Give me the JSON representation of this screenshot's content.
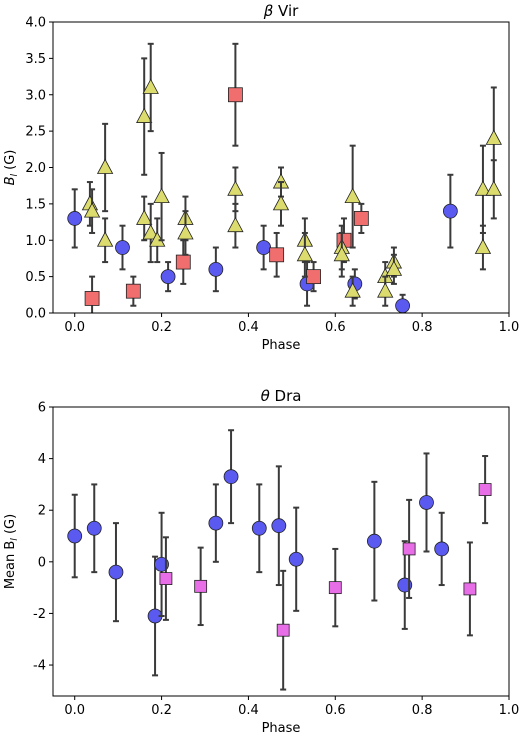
{
  "chart_data": [
    {
      "type": "scatter",
      "title_sym": "β",
      "title_rest": " Vir",
      "xlabel": "Phase",
      "ylabel_main": "B",
      "ylabel_sub": "l",
      "ylabel_unit": " (G)",
      "xlim": [
        -0.05,
        1.0
      ],
      "ylim": [
        0.0,
        4.0
      ],
      "xticks": [
        "0.0",
        "0.2",
        "0.4",
        "0.6",
        "0.8",
        "1.0"
      ],
      "yticks": [
        "0.0",
        "0.5",
        "1.0",
        "1.5",
        "2.0",
        "2.5",
        "3.0",
        "3.5",
        "4.0"
      ],
      "grid": false,
      "series": [
        {
          "marker": "circle",
          "color": "#5a5af0",
          "points": [
            {
              "x": 0.0,
              "y": 1.3,
              "err": 0.4
            },
            {
              "x": 0.11,
              "y": 0.9,
              "err": 0.3
            },
            {
              "x": 0.215,
              "y": 0.5,
              "err": 0.2
            },
            {
              "x": 0.325,
              "y": 0.6,
              "err": 0.3
            },
            {
              "x": 0.435,
              "y": 0.9,
              "err": 0.3
            },
            {
              "x": 0.535,
              "y": 0.4,
              "err": 0.3
            },
            {
              "x": 0.645,
              "y": 0.4,
              "err": 0.2
            },
            {
              "x": 0.755,
              "y": 0.1,
              "err": 0.15
            },
            {
              "x": 0.865,
              "y": 1.4,
              "err": 0.5
            }
          ]
        },
        {
          "marker": "square",
          "color": "#f06e6e",
          "points": [
            {
              "x": 0.04,
              "y": 0.2,
              "err": 0.3
            },
            {
              "x": 0.135,
              "y": 0.3,
              "err": 0.2
            },
            {
              "x": 0.25,
              "y": 0.7,
              "err": 0.3
            },
            {
              "x": 0.37,
              "y": 3.0,
              "err": 0.7
            },
            {
              "x": 0.465,
              "y": 0.8,
              "err": 0.3
            },
            {
              "x": 0.55,
              "y": 0.5,
              "err": 0.2
            },
            {
              "x": 0.62,
              "y": 1.0,
              "err": 0.3
            },
            {
              "x": 0.66,
              "y": 1.3,
              "err": 0.2
            }
          ]
        },
        {
          "marker": "triangle",
          "color": "#dcdc6e",
          "points": [
            {
              "x": 0.035,
              "y": 1.5,
              "err": 0.3
            },
            {
              "x": 0.04,
              "y": 1.4,
              "err": 0.3
            },
            {
              "x": 0.07,
              "y": 2.0,
              "err": 0.6
            },
            {
              "x": 0.07,
              "y": 1.0,
              "err": 0.3
            },
            {
              "x": 0.16,
              "y": 2.7,
              "err": 0.8
            },
            {
              "x": 0.16,
              "y": 1.3,
              "err": 0.3
            },
            {
              "x": 0.175,
              "y": 3.1,
              "err": 0.6
            },
            {
              "x": 0.175,
              "y": 1.1,
              "err": 0.4
            },
            {
              "x": 0.19,
              "y": 1.0,
              "err": 0.3
            },
            {
              "x": 0.2,
              "y": 1.6,
              "err": 0.6
            },
            {
              "x": 0.255,
              "y": 1.3,
              "err": 0.3
            },
            {
              "x": 0.255,
              "y": 1.1,
              "err": 0.3
            },
            {
              "x": 0.37,
              "y": 1.7,
              "err": 0.3
            },
            {
              "x": 0.37,
              "y": 1.2,
              "err": 0.3
            },
            {
              "x": 0.475,
              "y": 1.8,
              "err": 0.2
            },
            {
              "x": 0.475,
              "y": 1.5,
              "err": 0.3
            },
            {
              "x": 0.53,
              "y": 1.0,
              "err": 0.3
            },
            {
              "x": 0.53,
              "y": 0.8,
              "err": 0.3
            },
            {
              "x": 0.615,
              "y": 0.9,
              "err": 0.3
            },
            {
              "x": 0.615,
              "y": 0.8,
              "err": 0.3
            },
            {
              "x": 0.64,
              "y": 1.6,
              "err": 0.7
            },
            {
              "x": 0.64,
              "y": 0.3,
              "err": 0.2
            },
            {
              "x": 0.715,
              "y": 0.5,
              "err": 0.2
            },
            {
              "x": 0.715,
              "y": 0.3,
              "err": 0.2
            },
            {
              "x": 0.735,
              "y": 0.7,
              "err": 0.2
            },
            {
              "x": 0.735,
              "y": 0.6,
              "err": 0.2
            },
            {
              "x": 0.94,
              "y": 1.7,
              "err": 0.6
            },
            {
              "x": 0.94,
              "y": 0.9,
              "err": 0.3
            },
            {
              "x": 0.965,
              "y": 2.4,
              "err": 0.7
            },
            {
              "x": 0.965,
              "y": 1.7,
              "err": 0.4
            }
          ]
        }
      ]
    },
    {
      "type": "scatter",
      "title_sym": "θ",
      "title_rest": " Dra",
      "xlabel": "Phase",
      "ylabel_main": "Mean B",
      "ylabel_sub": "l",
      "ylabel_unit": " (G)",
      "xlim": [
        -0.05,
        1.0
      ],
      "ylim": [
        -5.2,
        6.0
      ],
      "xticks": [
        "0.0",
        "0.2",
        "0.4",
        "0.6",
        "0.8",
        "1.0"
      ],
      "yticks": [
        "-4",
        "-2",
        "0",
        "2",
        "4",
        "6"
      ],
      "ytick_values": [
        -4,
        -2,
        0,
        2,
        4,
        6
      ],
      "grid": false,
      "series": [
        {
          "marker": "circle",
          "color": "#5a5af0",
          "points": [
            {
              "x": 0.0,
              "y": 1.0,
              "err": 1.6
            },
            {
              "x": 0.045,
              "y": 1.3,
              "err": 1.7
            },
            {
              "x": 0.095,
              "y": -0.4,
              "err": 1.9
            },
            {
              "x": 0.185,
              "y": -2.1,
              "err": 2.3
            },
            {
              "x": 0.2,
              "y": -0.1,
              "err": 2.0
            },
            {
              "x": 0.325,
              "y": 1.5,
              "err": 1.5
            },
            {
              "x": 0.36,
              "y": 3.3,
              "err": 1.8
            },
            {
              "x": 0.425,
              "y": 1.3,
              "err": 1.7
            },
            {
              "x": 0.47,
              "y": 1.4,
              "err": 2.3
            },
            {
              "x": 0.51,
              "y": 0.1,
              "err": 2.0
            },
            {
              "x": 0.69,
              "y": 0.8,
              "err": 2.3
            },
            {
              "x": 0.76,
              "y": -0.9,
              "err": 1.7
            },
            {
              "x": 0.81,
              "y": 2.3,
              "err": 1.9
            },
            {
              "x": 0.845,
              "y": 0.5,
              "err": 1.4
            }
          ]
        },
        {
          "marker": "square",
          "color": "#e86ee8",
          "points": [
            {
              "x": 0.21,
              "y": -0.65,
              "err": 1.6
            },
            {
              "x": 0.29,
              "y": -0.95,
              "err": 1.5
            },
            {
              "x": 0.48,
              "y": -2.65,
              "err": 2.3
            },
            {
              "x": 0.6,
              "y": -1.0,
              "err": 1.5
            },
            {
              "x": 0.77,
              "y": 0.5,
              "err": 1.9
            },
            {
              "x": 0.91,
              "y": -1.05,
              "err": 1.8
            },
            {
              "x": 0.945,
              "y": 2.8,
              "err": 1.3
            }
          ]
        }
      ]
    }
  ]
}
